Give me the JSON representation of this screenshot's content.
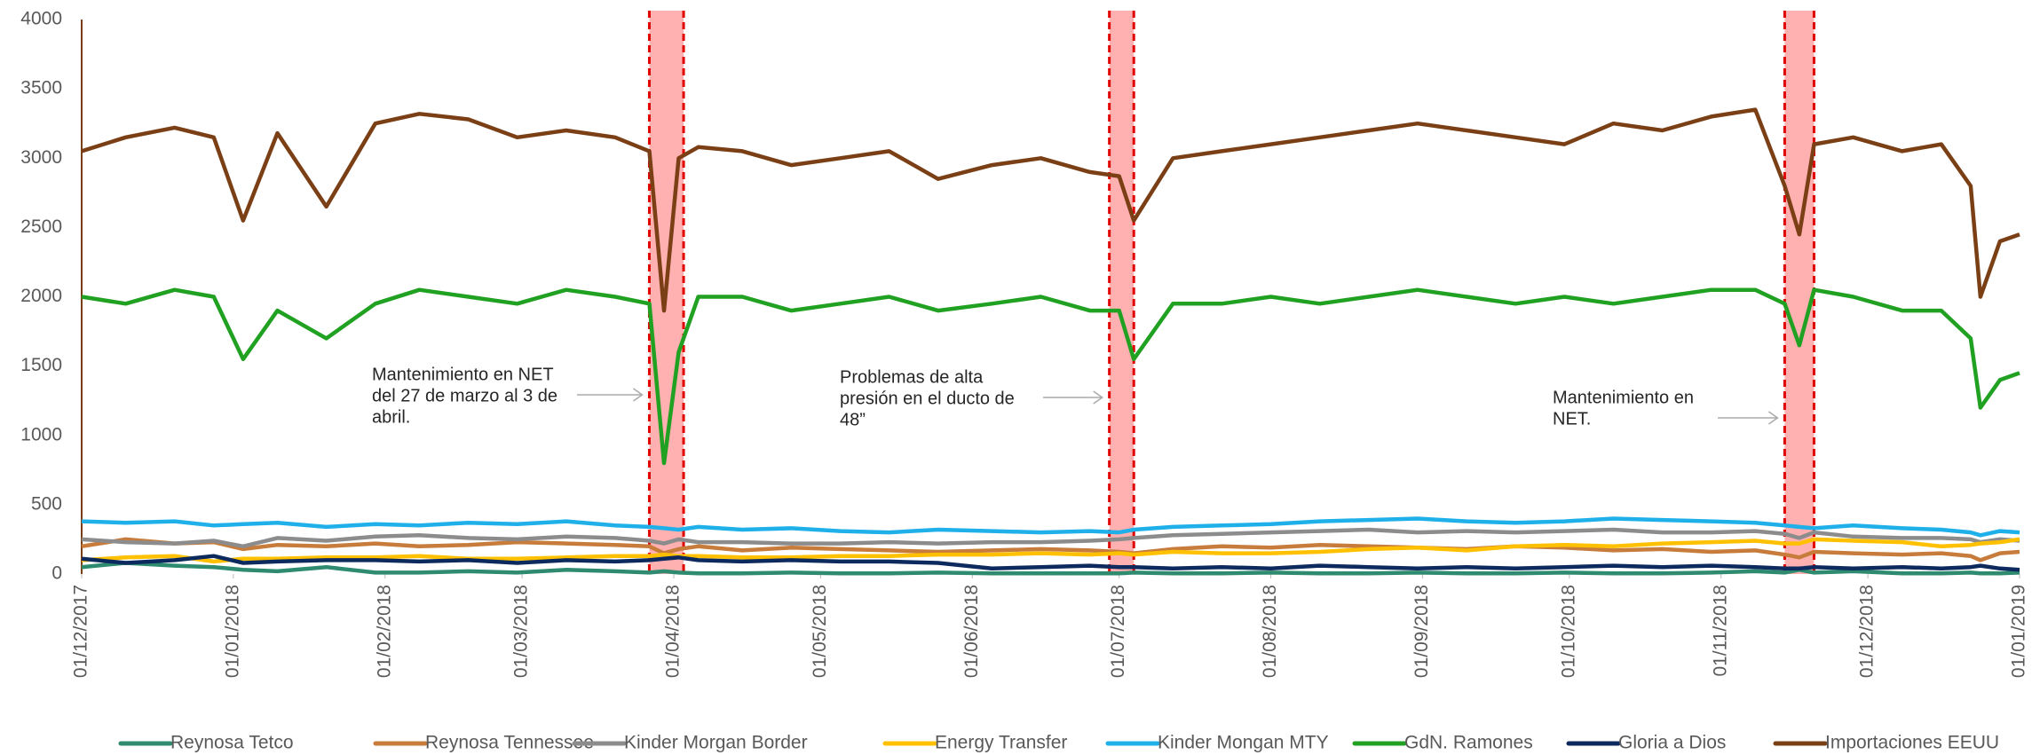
{
  "chart_data": {
    "type": "line",
    "x": [
      "2017-12-01",
      "2017-12-10",
      "2017-12-20",
      "2017-12-28",
      "2018-01-03",
      "2018-01-10",
      "2018-01-20",
      "2018-01-30",
      "2018-02-08",
      "2018-02-18",
      "2018-02-28",
      "2018-03-10",
      "2018-03-20",
      "2018-03-27",
      "2018-03-30",
      "2018-04-02",
      "2018-04-06",
      "2018-04-15",
      "2018-04-25",
      "2018-05-05",
      "2018-05-15",
      "2018-05-25",
      "2018-06-05",
      "2018-06-15",
      "2018-06-25",
      "2018-07-01",
      "2018-07-04",
      "2018-07-12",
      "2018-07-22",
      "2018-08-01",
      "2018-08-11",
      "2018-08-21",
      "2018-08-31",
      "2018-09-10",
      "2018-09-20",
      "2018-09-30",
      "2018-10-10",
      "2018-10-20",
      "2018-10-30",
      "2018-11-08",
      "2018-11-14",
      "2018-11-17",
      "2018-11-20",
      "2018-11-28",
      "2018-12-08",
      "2018-12-16",
      "2018-12-22",
      "2018-12-24",
      "2018-12-28",
      "2019-01-01"
    ],
    "series": [
      {
        "name": "Reynosa Tetco",
        "color": "#2e8b6f",
        "values": [
          50,
          80,
          60,
          50,
          30,
          20,
          50,
          10,
          10,
          20,
          10,
          30,
          20,
          10,
          20,
          10,
          5,
          5,
          10,
          5,
          5,
          10,
          5,
          5,
          5,
          5,
          10,
          5,
          5,
          10,
          5,
          5,
          10,
          5,
          5,
          10,
          5,
          5,
          10,
          20,
          10,
          30,
          10,
          20,
          5,
          5,
          10,
          5,
          5,
          10
        ]
      },
      {
        "name": "Reynosa Tennessee",
        "color": "#c77c3c",
        "values": [
          200,
          250,
          220,
          230,
          180,
          210,
          200,
          220,
          200,
          210,
          230,
          220,
          210,
          200,
          150,
          180,
          200,
          170,
          190,
          180,
          170,
          160,
          170,
          180,
          170,
          160,
          150,
          180,
          200,
          190,
          210,
          200,
          190,
          180,
          200,
          190,
          170,
          180,
          160,
          170,
          140,
          120,
          160,
          150,
          140,
          150,
          130,
          100,
          150,
          160
        ]
      },
      {
        "name": "Kinder Morgan Border",
        "color": "#8c8c8c",
        "values": [
          250,
          230,
          220,
          240,
          200,
          260,
          240,
          270,
          280,
          260,
          250,
          270,
          260,
          240,
          220,
          250,
          230,
          230,
          220,
          220,
          230,
          220,
          230,
          230,
          240,
          250,
          260,
          280,
          290,
          300,
          310,
          320,
          300,
          310,
          300,
          310,
          320,
          300,
          300,
          310,
          290,
          260,
          300,
          270,
          260,
          260,
          250,
          230,
          250,
          240
        ]
      },
      {
        "name": "Energy Transfer",
        "color": "#ffc000",
        "values": [
          100,
          120,
          130,
          90,
          110,
          110,
          120,
          120,
          130,
          110,
          110,
          120,
          130,
          130,
          140,
          130,
          130,
          120,
          120,
          130,
          130,
          140,
          140,
          150,
          140,
          150,
          140,
          160,
          150,
          150,
          160,
          180,
          190,
          170,
          200,
          210,
          200,
          220,
          230,
          240,
          220,
          220,
          250,
          240,
          230,
          200,
          210,
          220,
          230,
          250
        ]
      },
      {
        "name": "Kinder Mongan MTY",
        "color": "#1fb0ea",
        "values": [
          380,
          370,
          380,
          350,
          360,
          370,
          340,
          360,
          350,
          370,
          360,
          380,
          350,
          340,
          330,
          320,
          340,
          320,
          330,
          310,
          300,
          320,
          310,
          300,
          310,
          300,
          320,
          340,
          350,
          360,
          380,
          390,
          400,
          380,
          370,
          380,
          400,
          390,
          380,
          370,
          350,
          340,
          330,
          350,
          330,
          320,
          300,
          280,
          310,
          300
        ]
      },
      {
        "name": "GdN. Ramones",
        "color": "#21a121",
        "values": [
          2000,
          1950,
          2050,
          2000,
          1550,
          1900,
          1700,
          1950,
          2050,
          2000,
          1950,
          2050,
          2000,
          1950,
          800,
          1600,
          2000,
          2000,
          1900,
          1950,
          2000,
          1900,
          1950,
          2000,
          1900,
          1900,
          1550,
          1950,
          1950,
          2000,
          1950,
          2000,
          2050,
          2000,
          1950,
          2000,
          1950,
          2000,
          2050,
          2050,
          1950,
          1650,
          2050,
          2000,
          1900,
          1900,
          1700,
          1200,
          1400,
          1450
        ]
      },
      {
        "name": "Gloria a Dios",
        "color": "#0d2a5e",
        "values": [
          110,
          80,
          100,
          130,
          80,
          90,
          100,
          100,
          90,
          100,
          80,
          100,
          90,
          100,
          110,
          120,
          100,
          90,
          100,
          90,
          90,
          80,
          40,
          50,
          60,
          50,
          50,
          40,
          50,
          40,
          60,
          50,
          40,
          50,
          40,
          50,
          60,
          50,
          60,
          50,
          40,
          40,
          50,
          40,
          50,
          40,
          50,
          60,
          40,
          30
        ]
      },
      {
        "name": "Importaciones EEUU",
        "color": "#7b3f16",
        "values": [
          3050,
          3150,
          3220,
          3150,
          2550,
          3180,
          2650,
          3250,
          3320,
          3280,
          3150,
          3200,
          3150,
          3050,
          1900,
          3000,
          3080,
          3050,
          2950,
          3000,
          3050,
          2850,
          2950,
          3000,
          2900,
          2870,
          2550,
          3000,
          3050,
          3100,
          3150,
          3200,
          3250,
          3200,
          3150,
          3100,
          3250,
          3200,
          3300,
          3350,
          2800,
          2450,
          3100,
          3150,
          3050,
          3100,
          2800,
          2000,
          2400,
          2450
        ]
      }
    ],
    "xlim": [
      "2017-12-01",
      "2019-01-01"
    ],
    "xticks": [
      {
        "value": "2017-12-01",
        "label": "01/12/2017"
      },
      {
        "value": "2018-01-01",
        "label": "01/01/2018"
      },
      {
        "value": "2018-02-01",
        "label": "01/02/2018"
      },
      {
        "value": "2018-03-01",
        "label": "01/03/2018"
      },
      {
        "value": "2018-04-01",
        "label": "01/04/2018"
      },
      {
        "value": "2018-05-01",
        "label": "01/05/2018"
      },
      {
        "value": "2018-06-01",
        "label": "01/06/2018"
      },
      {
        "value": "2018-07-01",
        "label": "01/07/2018"
      },
      {
        "value": "2018-08-01",
        "label": "01/08/2018"
      },
      {
        "value": "2018-09-01",
        "label": "01/09/2018"
      },
      {
        "value": "2018-10-01",
        "label": "01/10/2018"
      },
      {
        "value": "2018-11-01",
        "label": "01/11/2018"
      },
      {
        "value": "2018-12-01",
        "label": "01/12/2018"
      },
      {
        "value": "2019-01-01",
        "label": "01/01/2019"
      }
    ],
    "ylim": [
      0,
      4000
    ],
    "yticks": [
      0,
      500,
      1000,
      1500,
      2000,
      2500,
      3000,
      3500,
      4000
    ],
    "grid": false,
    "legend": "bottom",
    "highlight_color": "#ff6f6f",
    "highlights": [
      [
        "2018-03-27",
        "2018-04-03"
      ],
      [
        "2018-06-29",
        "2018-07-04"
      ],
      [
        "2018-11-14",
        "2018-11-20"
      ]
    ],
    "annotations": [
      {
        "lines": [
          "Mantenimiento en NET",
          "del 27 de marzo al 3 de",
          "abril."
        ]
      },
      {
        "lines": [
          "Problemas de alta",
          "presión en el ducto de",
          "48”"
        ]
      },
      {
        "lines": [
          "Mantenimiento en",
          "NET."
        ]
      }
    ]
  }
}
